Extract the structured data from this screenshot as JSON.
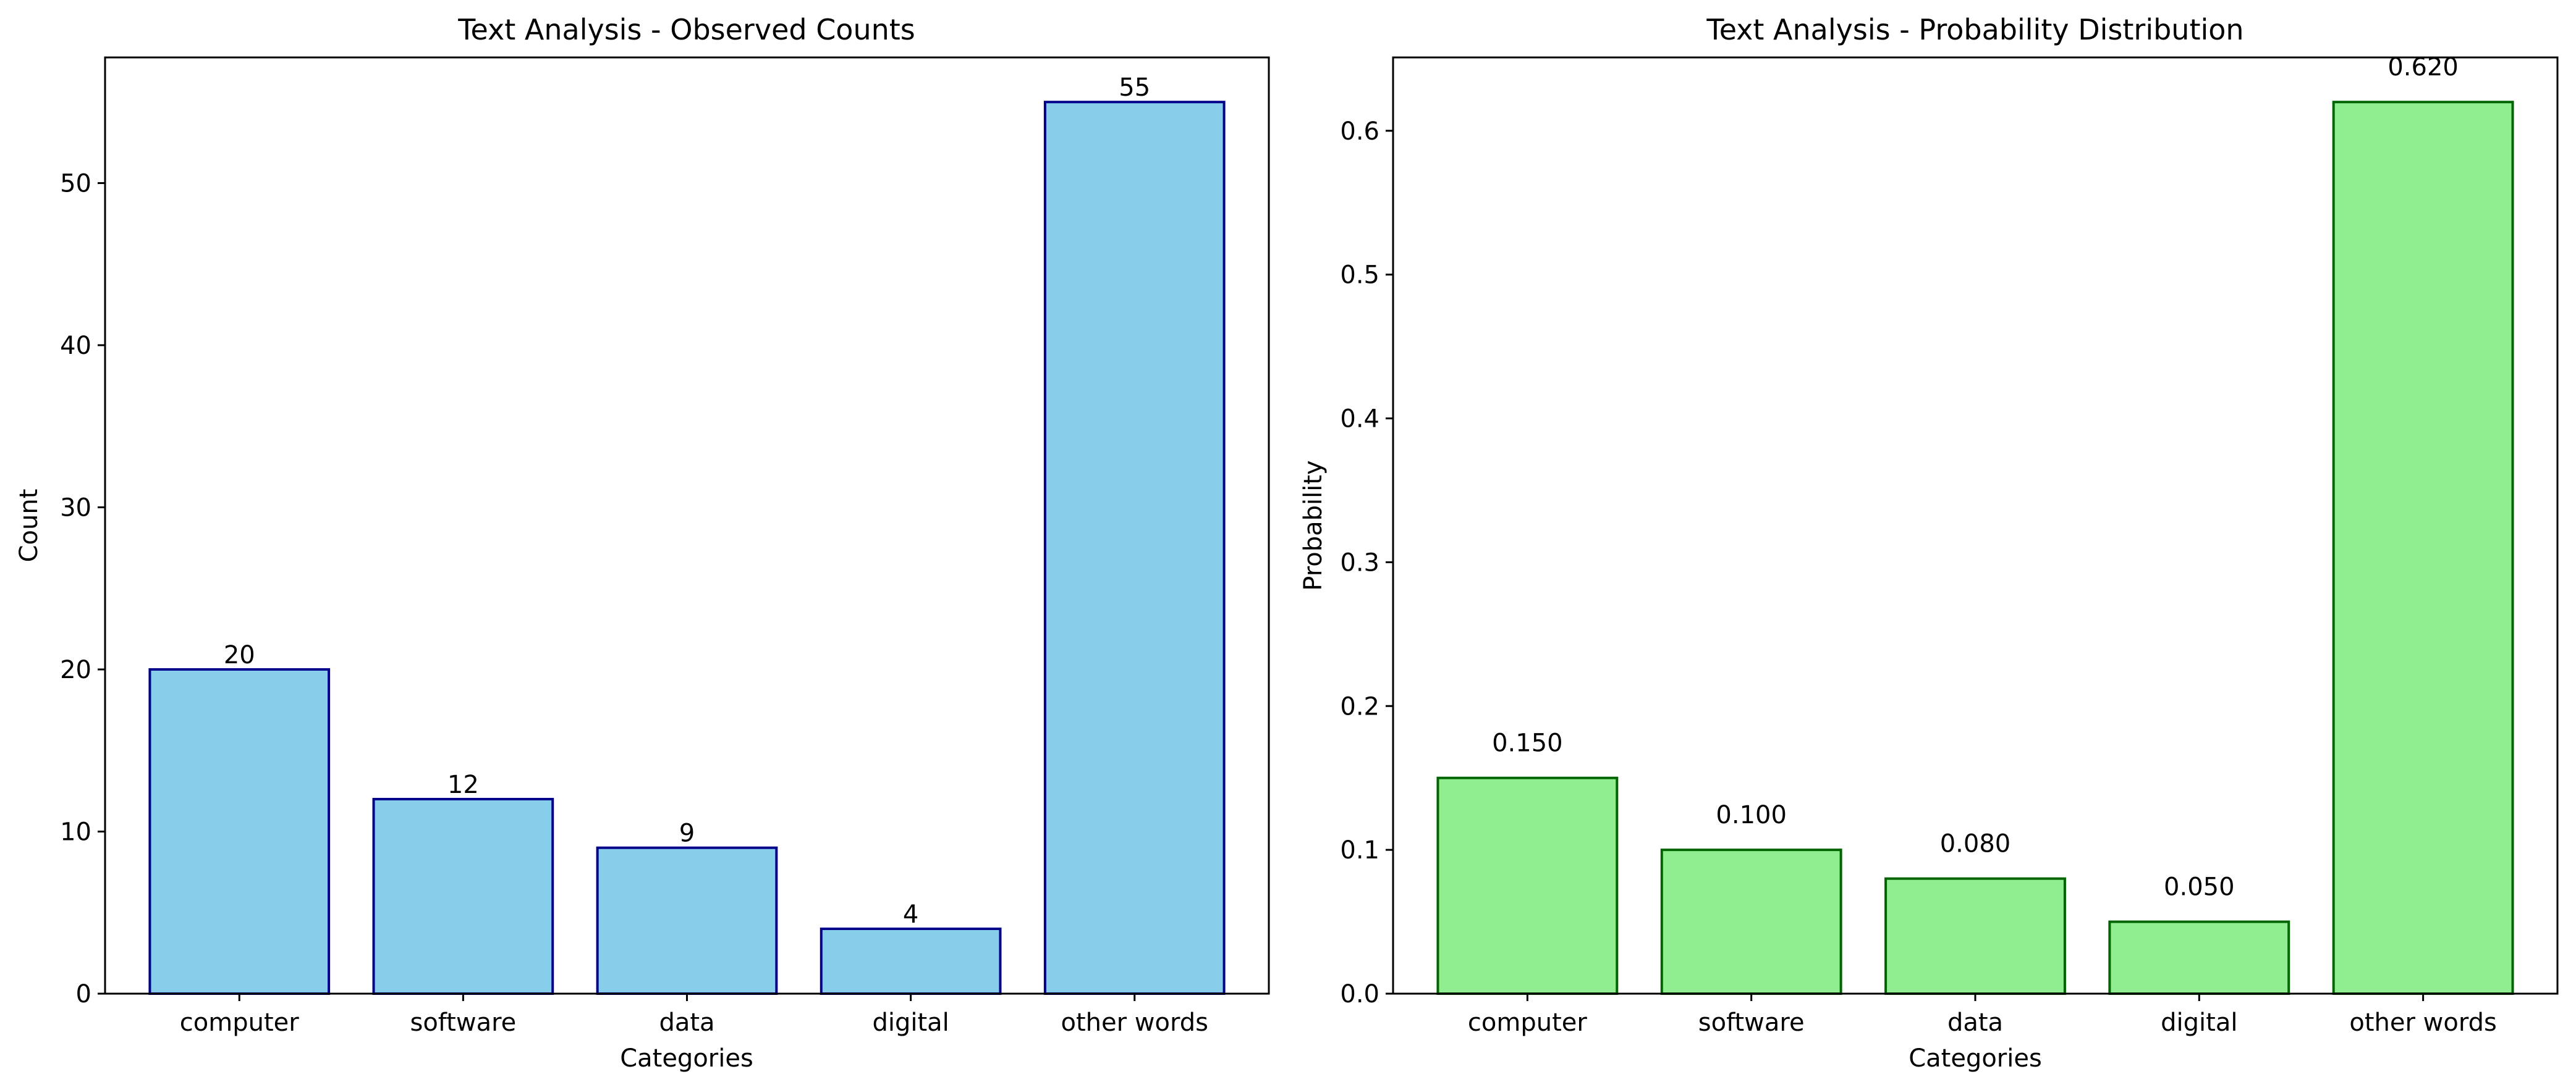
{
  "figure": {
    "background": "#ffffff"
  },
  "chart_data": [
    {
      "type": "bar",
      "title": "Text Analysis - Observed Counts",
      "xlabel": "Categories",
      "ylabel": "Count",
      "categories": [
        "computer",
        "software",
        "data",
        "digital",
        "other words"
      ],
      "values": [
        20,
        12,
        9,
        4,
        55
      ],
      "value_labels": [
        "20",
        "12",
        "9",
        "4",
        "55"
      ],
      "ylim": [
        0,
        57.75
      ],
      "yticks": [
        0,
        10,
        20,
        30,
        40,
        50
      ],
      "ytick_labels": [
        "0",
        "10",
        "20",
        "30",
        "40",
        "50"
      ],
      "bar_color": "#87ceeb",
      "edge_color": "#00008b",
      "grid": false
    },
    {
      "type": "bar",
      "title": "Text Analysis - Probability Distribution",
      "xlabel": "Categories",
      "ylabel": "Probability",
      "categories": [
        "computer",
        "software",
        "data",
        "digital",
        "other words"
      ],
      "values": [
        0.15,
        0.1,
        0.08,
        0.05,
        0.62
      ],
      "value_labels": [
        "0.150",
        "0.100",
        "0.080",
        "0.050",
        "0.620"
      ],
      "ylim": [
        0,
        0.651
      ],
      "yticks": [
        0.0,
        0.1,
        0.2,
        0.3,
        0.4,
        0.5,
        0.6
      ],
      "ytick_labels": [
        "0.0",
        "0.1",
        "0.2",
        "0.3",
        "0.4",
        "0.5",
        "0.6"
      ],
      "bar_color": "#90ee90",
      "edge_color": "#006400",
      "grid": false
    }
  ]
}
